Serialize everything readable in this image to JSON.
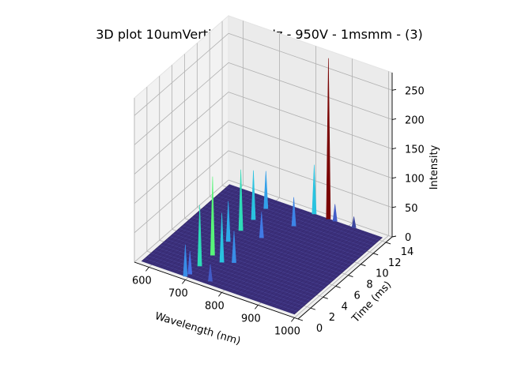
{
  "chart_data": {
    "type": "surface3d",
    "title": "3D plot 10umVertical - 300Hz - 950V - 1msmm - (3)",
    "xlabel": "Wavelength (nm)",
    "ylabel": "Time (ms)",
    "zlabel": "Intensity",
    "x_ticks": [
      "600",
      "700",
      "800",
      "900",
      "1000"
    ],
    "y_ticks": [
      "0",
      "2",
      "4",
      "6",
      "8",
      "10",
      "12",
      "14"
    ],
    "z_ticks": [
      "0",
      "50",
      "100",
      "150",
      "200",
      "250"
    ],
    "xlim": [
      560,
      1010
    ],
    "ylim": [
      0,
      15
    ],
    "zlim": [
      0,
      280
    ],
    "colormap": "turbo",
    "grid": true,
    "peaks": [
      {
        "wavelength": 700,
        "time": 0.0,
        "intensity": 60
      },
      {
        "wavelength": 704,
        "time": 0.5,
        "intensity": 45
      },
      {
        "wavelength": 760,
        "time": 0.5,
        "intensity": 35
      },
      {
        "wavelength": 705,
        "time": 2.0,
        "intensity": 110
      },
      {
        "wavelength": 706,
        "time": 4.0,
        "intensity": 140
      },
      {
        "wavelength": 740,
        "time": 3.5,
        "intensity": 90
      },
      {
        "wavelength": 765,
        "time": 4.0,
        "intensity": 60
      },
      {
        "wavelength": 706,
        "time": 6.5,
        "intensity": 75
      },
      {
        "wavelength": 706,
        "time": 8.5,
        "intensity": 110
      },
      {
        "wavelength": 706,
        "time": 10.5,
        "intensity": 90
      },
      {
        "wavelength": 706,
        "time": 12.5,
        "intensity": 70
      },
      {
        "wavelength": 763,
        "time": 8.5,
        "intensity": 50
      },
      {
        "wavelength": 800,
        "time": 11.5,
        "intensity": 55
      },
      {
        "wavelength": 852,
        "time": 14.0,
        "intensity": 280
      },
      {
        "wavelength": 813,
        "time": 14.0,
        "intensity": 90
      },
      {
        "wavelength": 870,
        "time": 14.0,
        "intensity": 35
      },
      {
        "wavelength": 922,
        "time": 14.0,
        "intensity": 25
      }
    ]
  }
}
